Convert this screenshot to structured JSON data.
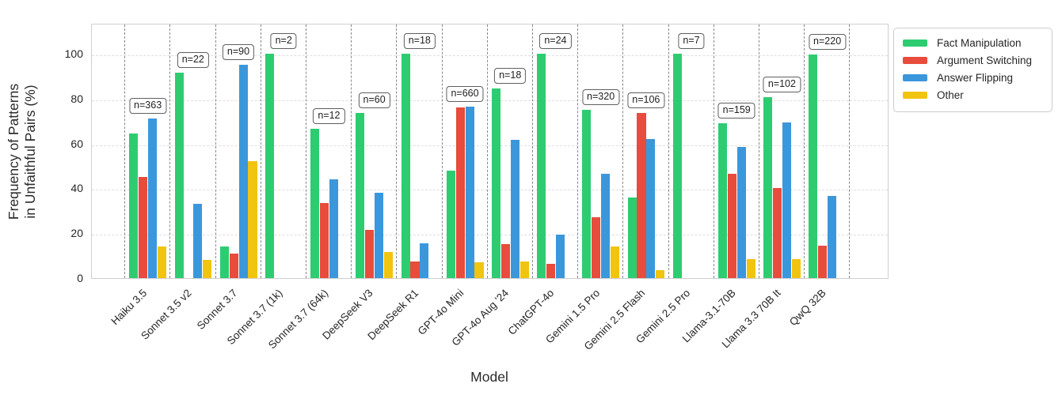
{
  "figure": {
    "xlabel": "Model",
    "ylabel_line1": "Frequency of Patterns",
    "ylabel_line2": "in Unfaithful Pairs (%)"
  },
  "chart_data": {
    "type": "bar",
    "title": "",
    "xlabel": "Model",
    "ylabel": "Frequency of Patterns in Unfaithful Pairs (%)",
    "ylim": [
      0,
      114
    ],
    "yticks": [
      0,
      20,
      40,
      60,
      80,
      100
    ],
    "grid": "dashed light horizontal gridlines; dashed gray vertical separators between model groups",
    "legend_position": "outside upper right",
    "categories": [
      "Haiku 3.5",
      "Sonnet 3.5 v2",
      "Sonnet 3.7",
      "Sonnet 3.7 (1k)",
      "Sonnet 3.7 (64k)",
      "DeepSeek V3",
      "DeepSeek R1",
      "GPT-4o Mini",
      "GPT-4o Aug '24",
      "ChatGPT-4o",
      "Gemini 1.5 Pro",
      "Gemini 2.5 Flash",
      "Gemini 2.5 Pro",
      "Llama-3.1-70B",
      "Llama 3.3 70B It",
      "QwQ 32B"
    ],
    "sample_sizes": [
      "n=363",
      "n=22",
      "n=90",
      "n=2",
      "n=12",
      "n=60",
      "n=18",
      "n=660",
      "n=18",
      "n=24",
      "n=320",
      "n=106",
      "n=7",
      "n=159",
      "n=102",
      "n=220"
    ],
    "series": [
      {
        "name": "Fact Manipulation",
        "color": "#2ecc71",
        "values": [
          64.5,
          91.5,
          14,
          100,
          66.5,
          73.5,
          100,
          48,
          84.5,
          100,
          75,
          36,
          100,
          69,
          80.5,
          99.5
        ]
      },
      {
        "name": "Argument Switching",
        "color": "#e74c3c",
        "values": [
          45,
          0,
          11,
          0,
          33.5,
          21.5,
          7.5,
          76,
          15,
          6.5,
          27,
          73.5,
          0,
          46.5,
          40,
          14.5
        ]
      },
      {
        "name": "Answer Flipping",
        "color": "#3b97dc",
        "values": [
          71,
          33,
          95,
          0,
          44,
          38,
          15.5,
          76.5,
          61.5,
          19.5,
          46.5,
          62,
          0,
          58.5,
          69.5,
          36.5
        ]
      },
      {
        "name": "Other",
        "color": "#f1c40f",
        "values": [
          14,
          8,
          52,
          0,
          0,
          11.5,
          0,
          7,
          7.5,
          0,
          14,
          3.5,
          0,
          8.5,
          8.5,
          0
        ]
      }
    ]
  }
}
